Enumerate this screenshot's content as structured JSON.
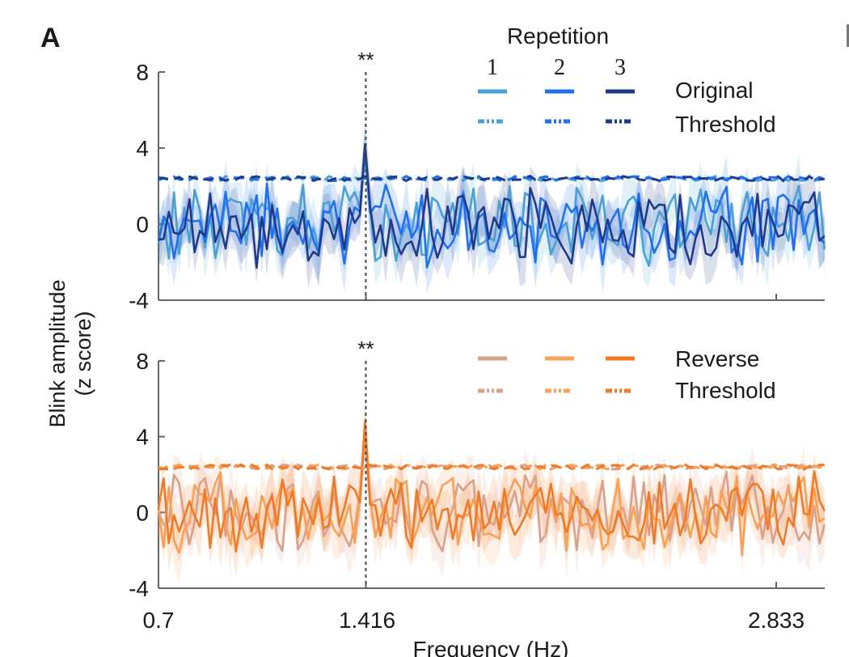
{
  "panel_label": "A",
  "chart_data": [
    {
      "type": "line",
      "name": "original",
      "xlabel": "Frequency (Hz)",
      "ylabel": "Blink amplitude (z score)",
      "xlim": [
        0.7,
        3.0
      ],
      "ylim": [
        -4,
        8
      ],
      "xticks": [
        0.7,
        1.416,
        2.833
      ],
      "xtick_labels": [
        "0.7",
        "1.416",
        "2.833"
      ],
      "yticks": [
        -4,
        0,
        4,
        8
      ],
      "ytick_labels": [
        "-4",
        "0",
        "4",
        "8"
      ],
      "significance": {
        "x": 1.416,
        "label": "**"
      },
      "threshold_level": 2.4,
      "peak_value": 4.2,
      "legend": {
        "title": "Repetition",
        "columns": [
          "1",
          "2",
          "3"
        ],
        "rows": [
          "Original",
          "Threshold"
        ],
        "placement": "top-right"
      },
      "series": [
        {
          "name": "Original repetition 1",
          "color": "#4a9fd4",
          "peak": 3.6
        },
        {
          "name": "Original repetition 2",
          "color": "#1f6ff0",
          "peak": 4.0
        },
        {
          "name": "Original repetition 3",
          "color": "#1e3a8a",
          "peak": 4.2
        }
      ]
    },
    {
      "type": "line",
      "name": "reverse",
      "xlabel": "Frequency (Hz)",
      "ylabel": "Blink amplitude (z score)",
      "xlim": [
        0.7,
        3.0
      ],
      "ylim": [
        -4,
        8
      ],
      "xticks": [
        0.7,
        1.416,
        2.833
      ],
      "xtick_labels": [
        "0.7",
        "1.416",
        "2.833"
      ],
      "yticks": [
        -4,
        0,
        4,
        8
      ],
      "ytick_labels": [
        "-4",
        "0",
        "4",
        "8"
      ],
      "significance": {
        "x": 1.416,
        "label": "**"
      },
      "threshold_level": 2.4,
      "peak_value": 4.8,
      "legend": {
        "rows": [
          "Reverse",
          "Threshold"
        ],
        "placement": "top-right"
      },
      "series": [
        {
          "name": "Reverse repetition 1",
          "color": "#d9a08a",
          "peak": 3.9
        },
        {
          "name": "Reverse repetition 2",
          "color": "#f9a055",
          "peak": 4.4
        },
        {
          "name": "Reverse repetition 3",
          "color": "#f07a25",
          "peak": 4.8
        }
      ]
    }
  ]
}
